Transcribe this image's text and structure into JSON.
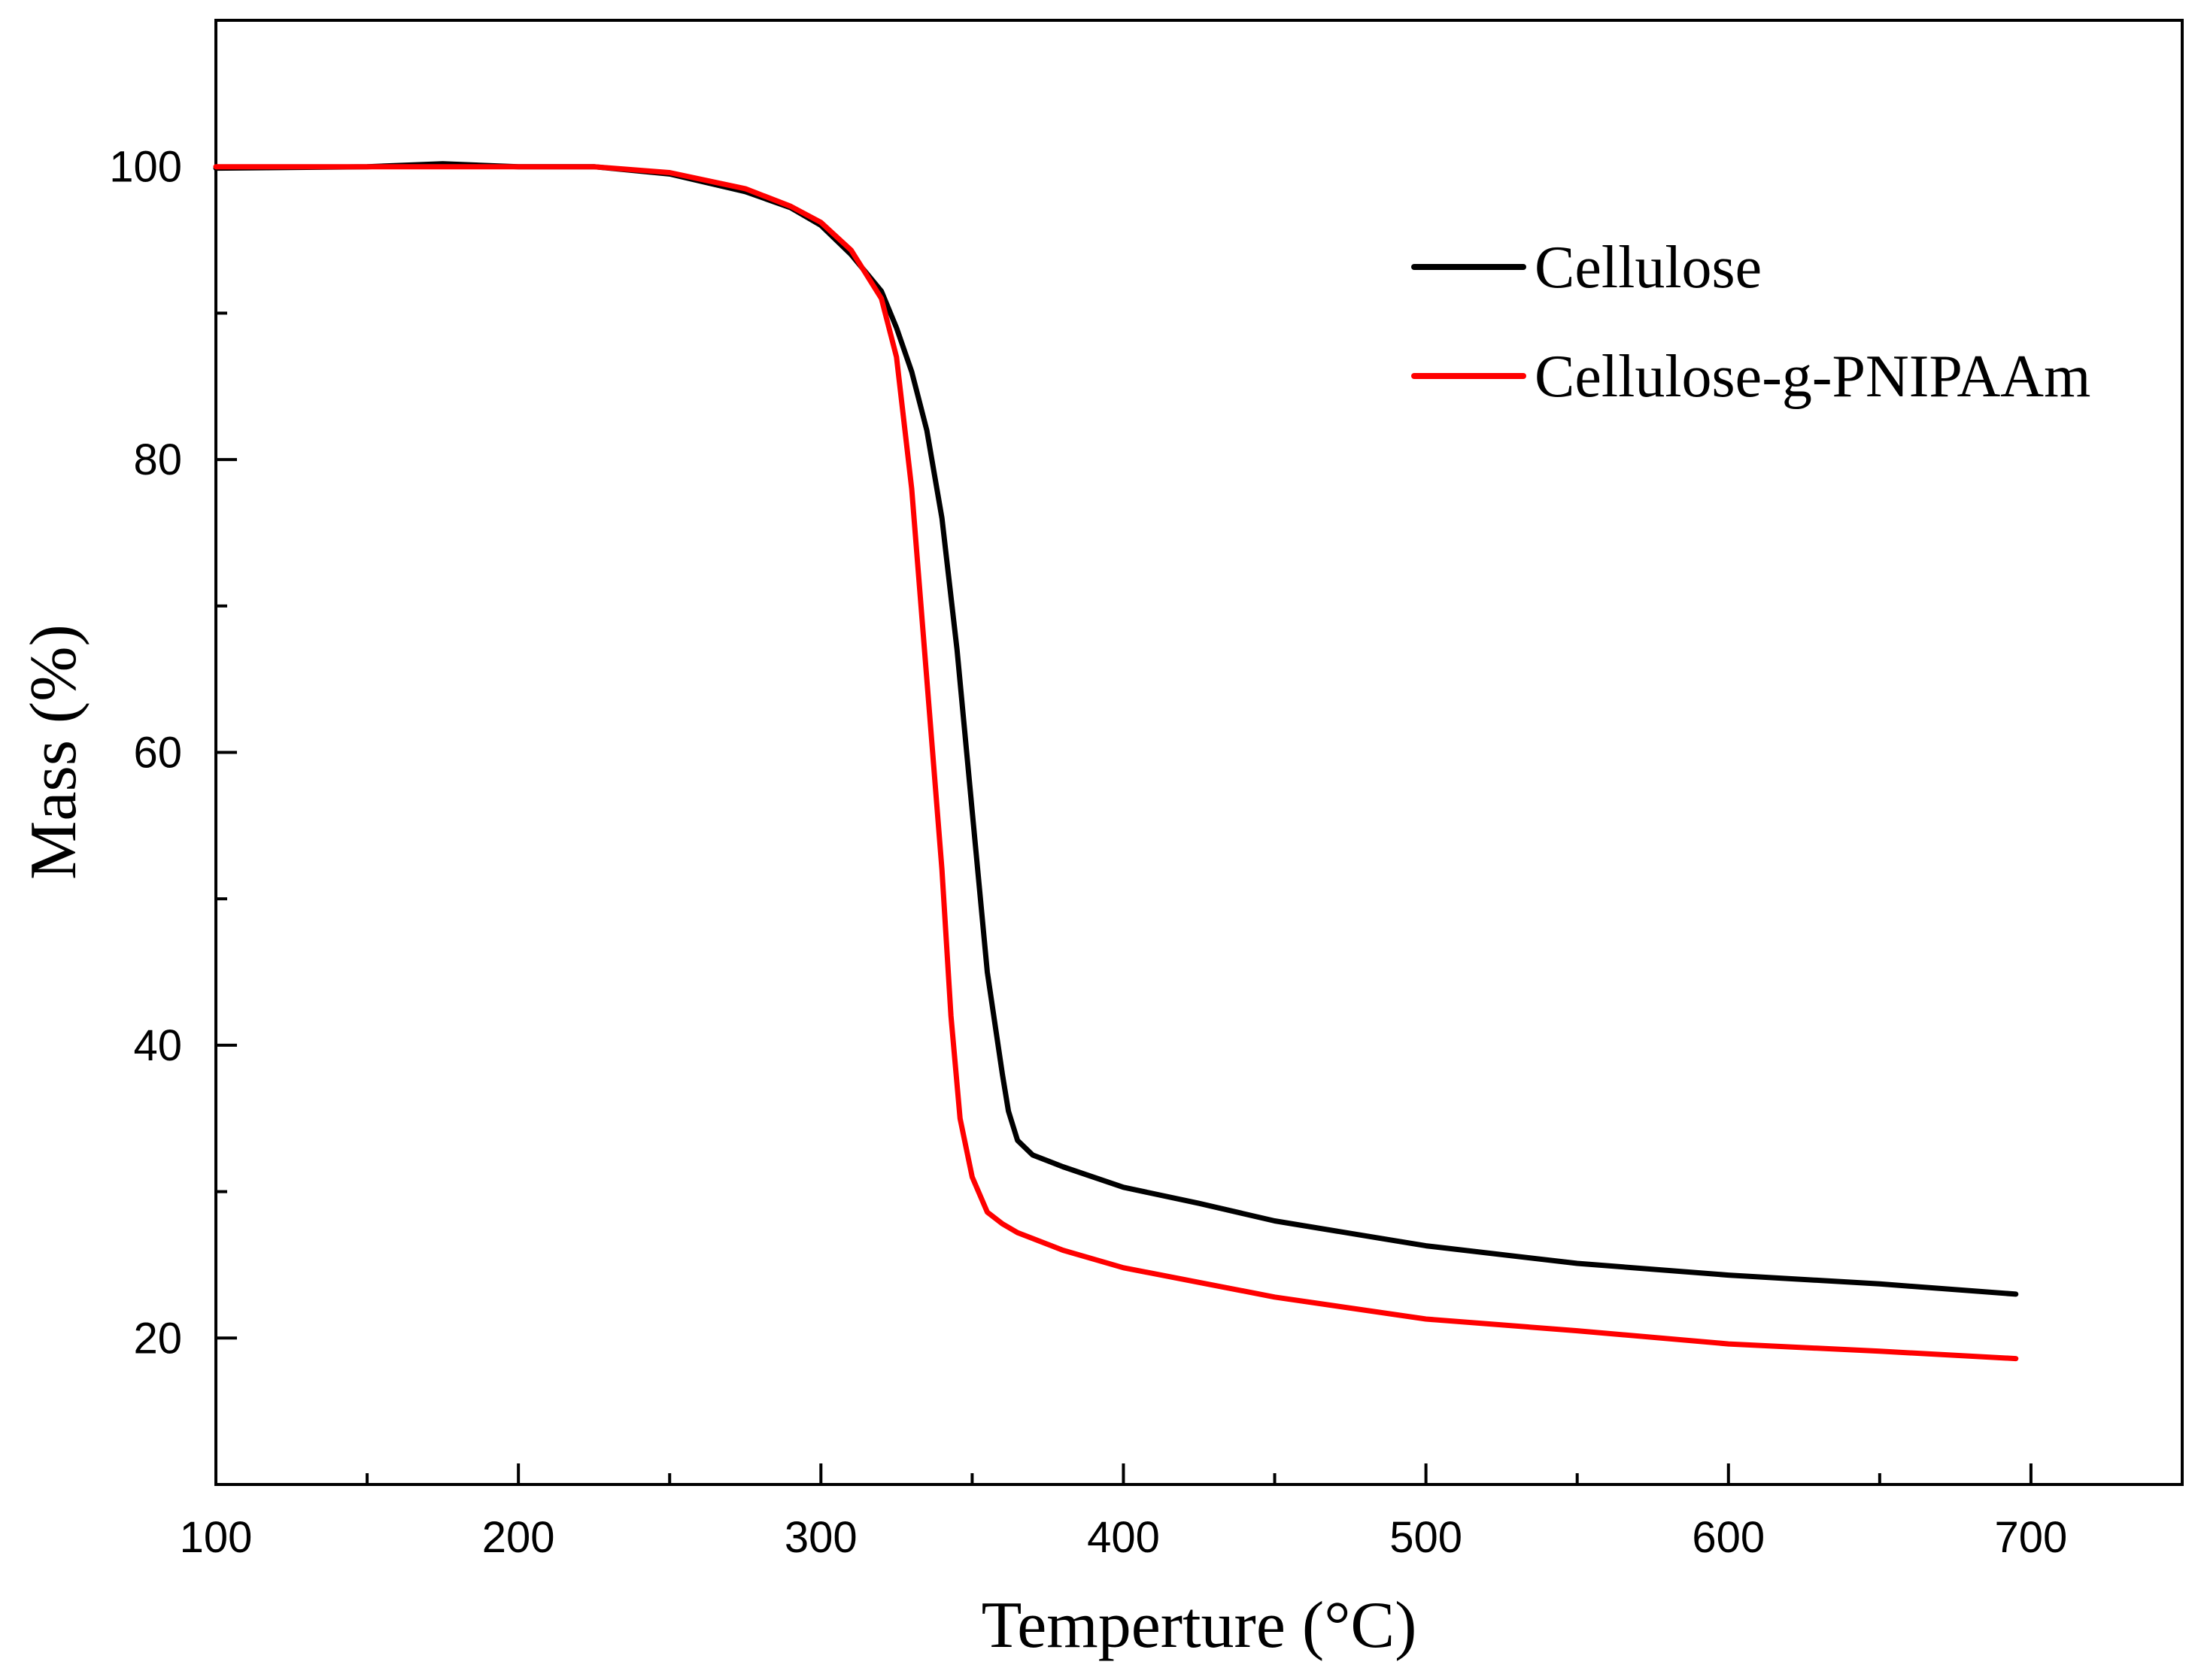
{
  "chart_data": {
    "type": "line",
    "title": "",
    "xlabel": "Temperture (°C)",
    "ylabel": "Mass (%)",
    "xlim": [
      100,
      750
    ],
    "ylim": [
      10,
      110
    ],
    "xticks": [
      100,
      200,
      300,
      400,
      500,
      600,
      700
    ],
    "xticks_minor": [
      150,
      250,
      350,
      450,
      550,
      650
    ],
    "yticks": [
      20,
      40,
      60,
      80,
      100
    ],
    "yticks_minor": [
      30,
      50,
      70,
      90
    ],
    "grid": false,
    "legend_position": "top-right",
    "series": [
      {
        "name": "Cellulose",
        "color": "#000000",
        "x": [
          100,
          150,
          175,
          200,
          225,
          250,
          275,
          290,
          300,
          310,
          320,
          325,
          330,
          335,
          340,
          345,
          350,
          355,
          360,
          362,
          365,
          370,
          380,
          400,
          425,
          450,
          500,
          550,
          600,
          650,
          695
        ],
        "y": [
          99.9,
          100.0,
          100.2,
          100.0,
          100.0,
          99.5,
          98.3,
          97.2,
          96.0,
          94.0,
          91.5,
          89.0,
          86.0,
          82.0,
          76.0,
          67.0,
          56.0,
          45.0,
          38.0,
          35.5,
          33.5,
          32.5,
          31.7,
          30.3,
          29.2,
          28.0,
          26.3,
          25.1,
          24.3,
          23.7,
          23.0
        ]
      },
      {
        "name": "Cellulose-g-PNIPAAm",
        "color": "#ff0000",
        "x": [
          100,
          150,
          200,
          225,
          250,
          275,
          290,
          300,
          310,
          320,
          325,
          330,
          335,
          340,
          343,
          346,
          350,
          355,
          360,
          365,
          370,
          380,
          400,
          425,
          450,
          500,
          550,
          600,
          650,
          695
        ],
        "y": [
          100.0,
          100.0,
          100.0,
          100.0,
          99.6,
          98.5,
          97.3,
          96.2,
          94.3,
          91.0,
          87.0,
          78.0,
          65.0,
          52.0,
          42.0,
          35.0,
          31.0,
          28.6,
          27.8,
          27.2,
          26.8,
          26.0,
          24.8,
          23.8,
          22.8,
          21.3,
          20.5,
          19.6,
          19.1,
          18.6
        ]
      }
    ]
  }
}
